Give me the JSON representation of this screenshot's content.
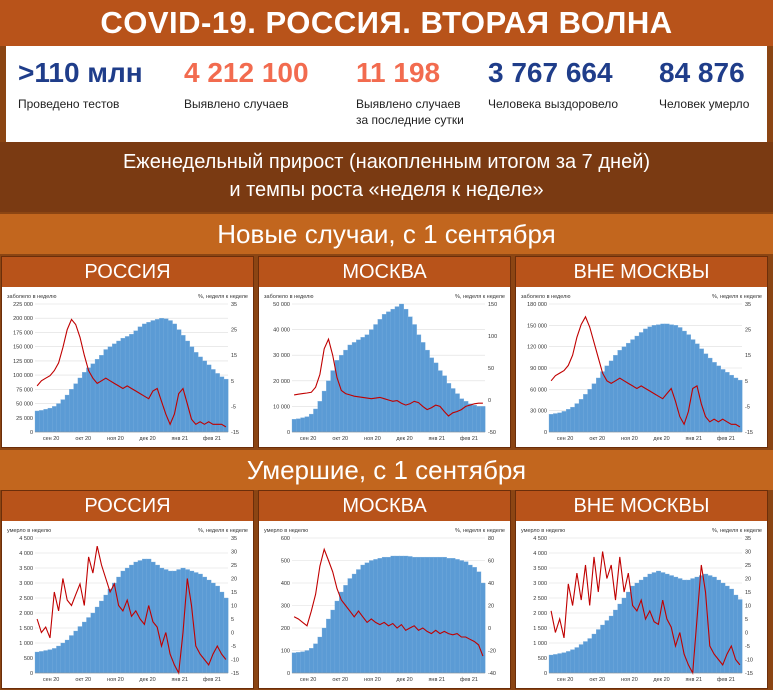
{
  "header": {
    "title": "COVID-19. РОССИЯ. ВТОРАЯ ВОЛНА"
  },
  "stats": [
    {
      "value": ">110 млн",
      "label": "Проведено тестов",
      "color": "#1f3d8a"
    },
    {
      "value": "4 212 100",
      "label": "Выявлено случаев",
      "color": "#f26b4f"
    },
    {
      "value": "11 198",
      "label": "Выявлено случаев\nза последние сутки",
      "color": "#f26b4f"
    },
    {
      "value": "3 767 664",
      "label": "Человека выздоровело",
      "color": "#1f3d8a"
    },
    {
      "value": "84 876",
      "label": "Человек умерло",
      "color": "#1f3d8a"
    }
  ],
  "subtitle": {
    "line1": "Еженедельный прирост (накопленным итогом за 7 дней)",
    "line2": "и темпы роста «неделя к неделе»"
  },
  "sections": {
    "cases": "Новые случаи, с 1 сентября",
    "deaths": "Умершие, с 1 сентября"
  },
  "panel_titles": [
    "РОССИЯ",
    "МОСКВА",
    "ВНЕ МОСКВЫ"
  ],
  "colors": {
    "bars": "#5b9bd5",
    "line": "#c00000",
    "band_dark": "#7a3a12",
    "band_mid": "#b8531a"
  },
  "chart_data": [
    {
      "type": "bar",
      "title": "РОССИЯ",
      "ylabel": "заболело в неделю",
      "y2label": "%, неделя к неделе",
      "x_ticks": [
        "сен 20",
        "окт 20",
        "ноя 20",
        "дек 20",
        "янв 21",
        "фев 21"
      ],
      "ylim": [
        0,
        225000
      ],
      "y_ticks": [
        "0",
        "25 000",
        "50 000",
        "75 000",
        "100 000",
        "125 000",
        "150 000",
        "175 000",
        "200 000",
        "225 000"
      ],
      "y2lim": [
        -15,
        35
      ],
      "y2_ticks": [
        "-15",
        "-5",
        "5",
        "15",
        "25",
        "35"
      ],
      "series": [
        {
          "kind": "bar",
          "values": [
            37000,
            38000,
            40000,
            42000,
            45000,
            50000,
            57000,
            65000,
            75000,
            85000,
            95000,
            105000,
            113000,
            120000,
            128000,
            135000,
            145000,
            150000,
            155000,
            160000,
            165000,
            168000,
            172000,
            178000,
            185000,
            190000,
            193000,
            196000,
            198000,
            200000,
            199000,
            196000,
            190000,
            180000,
            170000,
            160000,
            150000,
            140000,
            132000,
            125000,
            118000,
            110000,
            103000,
            97000,
            93000
          ]
        },
        {
          "kind": "line",
          "axis": "y2",
          "values": [
            3,
            5,
            6,
            7,
            9,
            12,
            18,
            25,
            29,
            27,
            22,
            15,
            9,
            6,
            4,
            5,
            6,
            5,
            4,
            3,
            2,
            3,
            2,
            1,
            0,
            -1,
            -2,
            1,
            2,
            -3,
            -8,
            -12,
            -8,
            0,
            2,
            -4,
            -10,
            -12,
            -11,
            -12,
            -11,
            -12,
            -12,
            -12,
            -13
          ]
        }
      ]
    },
    {
      "type": "bar",
      "title": "МОСКВА",
      "ylabel": "заболело в неделю",
      "y2label": "%, неделя к неделе",
      "x_ticks": [
        "сен 20",
        "окт 20",
        "ноя 20",
        "дек 20",
        "янв 21",
        "фев 21"
      ],
      "ylim": [
        0,
        50000
      ],
      "y_ticks": [
        "0",
        "10 000",
        "20 000",
        "30 000",
        "40 000",
        "50 000"
      ],
      "y2lim": [
        -50,
        150
      ],
      "y2_ticks": [
        "-50",
        "0",
        "50",
        "100",
        "150"
      ],
      "series": [
        {
          "kind": "bar",
          "values": [
            5000,
            5200,
            5600,
            6000,
            7000,
            9000,
            12000,
            16000,
            20000,
            24000,
            28000,
            30000,
            32000,
            34000,
            35000,
            36000,
            37000,
            38000,
            40000,
            42000,
            44000,
            46000,
            47000,
            48000,
            49000,
            50000,
            48000,
            45000,
            42000,
            38000,
            35000,
            32000,
            29000,
            27000,
            24000,
            22000,
            19000,
            17000,
            15000,
            13000,
            12000,
            11000,
            10500,
            10000,
            10000
          ]
        },
        {
          "kind": "line",
          "axis": "y2",
          "values": [
            8,
            9,
            10,
            11,
            12,
            20,
            40,
            80,
            95,
            70,
            35,
            15,
            10,
            8,
            6,
            5,
            4,
            3,
            2,
            3,
            4,
            2,
            0,
            -2,
            -1,
            -5,
            -8,
            -6,
            -2,
            -4,
            -10,
            -15,
            -12,
            -8,
            -10,
            -18,
            -25,
            -20,
            -18,
            -15,
            -10,
            -8,
            -6,
            -5,
            -5
          ]
        }
      ]
    },
    {
      "type": "bar",
      "title": "ВНЕ МОСКВЫ",
      "ylabel": "заболело в неделю",
      "y2label": "%, неделя к неделе",
      "x_ticks": [
        "сен 20",
        "окт 20",
        "ноя 20",
        "дек 20",
        "янв 21",
        "фев 21"
      ],
      "ylim": [
        0,
        180000
      ],
      "y_ticks": [
        "0",
        "30 000",
        "60 000",
        "90 000",
        "120 000",
        "150 000",
        "180 000"
      ],
      "y2lim": [
        -15,
        35
      ],
      "y2_ticks": [
        "-15",
        "-5",
        "5",
        "15",
        "25",
        "35"
      ],
      "series": [
        {
          "kind": "bar",
          "values": [
            25000,
            26000,
            27000,
            29000,
            32000,
            35000,
            40000,
            46000,
            53000,
            60000,
            68000,
            76000,
            85000,
            93000,
            100000,
            108000,
            115000,
            120000,
            125000,
            130000,
            135000,
            140000,
            145000,
            148000,
            150000,
            151000,
            152000,
            152000,
            151000,
            150000,
            147000,
            142000,
            137000,
            130000,
            124000,
            117000,
            110000,
            104000,
            98000,
            93000,
            88000,
            84000,
            80000,
            76000,
            73000
          ]
        },
        {
          "kind": "line",
          "axis": "y2",
          "values": [
            5,
            7,
            8,
            9,
            11,
            15,
            22,
            27,
            30,
            26,
            20,
            14,
            8,
            5,
            4,
            5,
            6,
            5,
            4,
            3,
            2,
            3,
            2,
            1,
            0,
            -1,
            -2,
            0,
            2,
            -3,
            -9,
            -12,
            -7,
            2,
            3,
            -4,
            -9,
            -11,
            -10,
            -11,
            -10,
            -11,
            -12,
            -12,
            -13
          ]
        }
      ]
    },
    {
      "type": "bar",
      "title": "РОССИЯ",
      "ylabel": "умерло в неделю",
      "y2label": "%, неделя к неделе",
      "x_ticks": [
        "сен 20",
        "окт 20",
        "ноя 20",
        "дек 20",
        "янв 21",
        "фев 21"
      ],
      "ylim": [
        0,
        4500
      ],
      "y_ticks": [
        "0",
        "500",
        "1 000",
        "1 500",
        "2 000",
        "2 500",
        "3 000",
        "3 500",
        "4 000",
        "4 500"
      ],
      "y2lim": [
        -15,
        35
      ],
      "y2_ticks": [
        "-15",
        "-10",
        "-5",
        "0",
        "5",
        "10",
        "15",
        "20",
        "25",
        "30",
        "35"
      ],
      "series": [
        {
          "kind": "bar",
          "values": [
            700,
            720,
            750,
            780,
            820,
            900,
            1000,
            1100,
            1250,
            1400,
            1550,
            1700,
            1850,
            2000,
            2200,
            2400,
            2600,
            2800,
            3000,
            3200,
            3400,
            3500,
            3600,
            3700,
            3750,
            3800,
            3800,
            3700,
            3600,
            3500,
            3450,
            3400,
            3400,
            3450,
            3500,
            3450,
            3400,
            3350,
            3300,
            3200,
            3100,
            3000,
            2900,
            2700,
            2500
          ]
        },
        {
          "kind": "line",
          "axis": "y2",
          "values": [
            5,
            0,
            2,
            -2,
            15,
            8,
            20,
            12,
            10,
            14,
            18,
            10,
            28,
            22,
            32,
            25,
            20,
            15,
            18,
            10,
            8,
            12,
            6,
            8,
            5,
            3,
            10,
            4,
            2,
            -5,
            0,
            -8,
            -12,
            -15,
            0,
            20,
            10,
            -5,
            -8,
            -10,
            -12,
            -8,
            -5,
            -8,
            -10
          ]
        }
      ]
    },
    {
      "type": "bar",
      "title": "МОСКВА",
      "ylabel": "умерло в неделю",
      "y2label": "%, неделя к неделе",
      "x_ticks": [
        "сен 20",
        "окт 20",
        "ноя 20",
        "дек 20",
        "янв 21",
        "фев 21"
      ],
      "ylim": [
        0,
        600
      ],
      "y_ticks": [
        "0",
        "100",
        "200",
        "300",
        "400",
        "500",
        "600"
      ],
      "y2lim": [
        -40,
        80
      ],
      "y2_ticks": [
        "-40",
        "-20",
        "0",
        "20",
        "40",
        "60",
        "80"
      ],
      "series": [
        {
          "kind": "bar",
          "values": [
            90,
            92,
            95,
            100,
            110,
            130,
            160,
            200,
            240,
            280,
            320,
            360,
            390,
            420,
            440,
            460,
            480,
            490,
            500,
            505,
            510,
            515,
            515,
            520,
            520,
            520,
            520,
            518,
            515,
            515,
            515,
            515,
            515,
            515,
            515,
            515,
            510,
            510,
            505,
            500,
            495,
            480,
            470,
            450,
            400
          ]
        },
        {
          "kind": "line",
          "axis": "y2",
          "values": [
            10,
            8,
            5,
            2,
            15,
            30,
            55,
            70,
            60,
            50,
            35,
            25,
            20,
            15,
            10,
            15,
            10,
            5,
            8,
            5,
            3,
            5,
            2,
            4,
            0,
            3,
            -2,
            0,
            2,
            -2,
            0,
            -3,
            -5,
            -2,
            -5,
            -3,
            -5,
            -6,
            -5,
            -8,
            -8,
            -10,
            -12,
            -15,
            -25
          ]
        }
      ]
    },
    {
      "type": "bar",
      "title": "ВНЕ МОСКВЫ",
      "ylabel": "умерло в неделю",
      "y2label": "%, неделя к неделе",
      "x_ticks": [
        "сен 20",
        "окт 20",
        "ноя 20",
        "дек 20",
        "янв 21",
        "фев 21"
      ],
      "ylim": [
        0,
        4500
      ],
      "y_ticks": [
        "0",
        "500",
        "1 000",
        "1 500",
        "2 000",
        "2 500",
        "3 000",
        "3 500",
        "4 000",
        "4 500"
      ],
      "y2lim": [
        -15,
        35
      ],
      "y2_ticks": [
        "-15",
        "-10",
        "-5",
        "0",
        "5",
        "10",
        "15",
        "20",
        "25",
        "30",
        "35"
      ],
      "series": [
        {
          "kind": "bar",
          "values": [
            600,
            620,
            650,
            680,
            720,
            780,
            850,
            950,
            1050,
            1150,
            1300,
            1450,
            1600,
            1750,
            1900,
            2100,
            2300,
            2500,
            2700,
            2900,
            3000,
            3100,
            3200,
            3300,
            3350,
            3400,
            3350,
            3300,
            3250,
            3200,
            3150,
            3100,
            3100,
            3150,
            3200,
            3250,
            3300,
            3250,
            3200,
            3100,
            3000,
            2900,
            2800,
            2600,
            2450
          ]
        },
        {
          "kind": "line",
          "axis": "y2",
          "values": [
            8,
            0,
            5,
            -2,
            18,
            10,
            22,
            12,
            25,
            10,
            28,
            15,
            30,
            20,
            25,
            12,
            28,
            15,
            22,
            10,
            8,
            12,
            5,
            8,
            4,
            3,
            12,
            5,
            2,
            -5,
            0,
            -8,
            -12,
            -15,
            5,
            25,
            15,
            -5,
            -8,
            -10,
            -12,
            -8,
            -5,
            -10,
            -12
          ]
        }
      ]
    }
  ]
}
